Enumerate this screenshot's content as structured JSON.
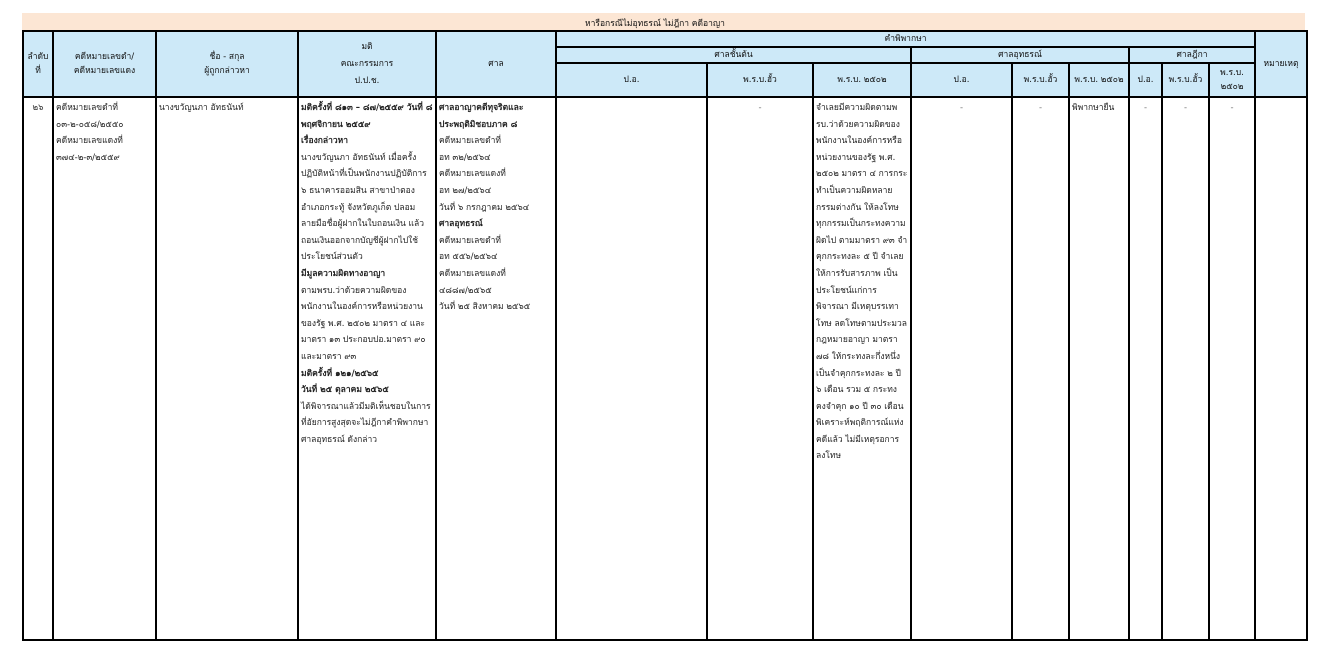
{
  "title": "หารือกรณีไม่อุทธรณ์ ไม่ฎีกา คดีอาญา",
  "headers": {
    "no": [
      "ลำดับ",
      "ที่"
    ],
    "case": [
      "คดีหมายเลขดำ/",
      "คดีหมายเลขแดง"
    ],
    "name": [
      "ชื่อ - สกุล",
      "ผู้ถูกกล่าวหา"
    ],
    "resolution": [
      "มติ",
      "คณะกรรมการ",
      "ป.ป.ช."
    ],
    "court": "ศาล",
    "judgment": "คำพิพากษา",
    "first_court": "ศาลชั้นต้น",
    "appeal_court": "ศาลอุทธรณ์",
    "supreme_court": "ศาลฎีกา",
    "sub": [
      "ป.อ.",
      "พ.ร.บ.ฮั้ว",
      "พ.ร.บ. ๒๕๐๒"
    ],
    "supreme_last": [
      "พ.ร.บ.",
      "๒๕๐๒"
    ],
    "remark": "หมายเหตุ"
  },
  "row": {
    "no": "๒๖",
    "case": [
      "คดีหมายเลขดำที่",
      "๐๓-๒-๐๕๘/๒๕๕๐",
      "คดีหมายเลขแดงที่",
      "๓๗๔-๒-๓/๒๕๕๙"
    ],
    "name": "นางขวัญนภา อัทธนันท์",
    "resolution": [
      {
        "t": "มติครั้งที่ ๘๑๓ – ๘๗/๒๕๕๙ วันที่ ๘ พฤศจิกายน ๒๕๕๙",
        "b": true
      },
      {
        "t": "เรื่องกล่าวหา",
        "b": true
      },
      {
        "t": "นางขวัญนภา อัทธนันท์ เมื่อครั้งปฏิบัติหน้าที่เป็นพนักงานปฏิบัติการ ๖ ธนาคารออมสิน สาขาป่าตอง อำเภอกระทู้ จังหวัดภูเก็ต ปลอมลายมือชื่อผู้ฝากในใบถอนเงิน แล้วถอนเงินออกจากบัญชีผู้ฝากไปใช้ประโยชน์ส่วนตัว",
        "b": false
      },
      {
        "t": "มีมูลความผิดทางอาญา",
        "b": true
      },
      {
        "t": "ตามพรบ.ว่าด้วยความผิดของพนักงานในองค์การหรือหน่วยงานของรัฐ พ.ศ. ๒๕๐๒ มาตรา ๔ และมาตรา ๑๓ ประกอบปอ.มาตรา ๙๐ และมาตรา ๙๓",
        "b": false
      },
      {
        "t": "มติครั้งที่ ๑๒๑/๒๕๖๕",
        "b": true
      },
      {
        "t": "วันที่ ๒๕ ตุลาคม ๒๕๖๕",
        "b": true
      },
      {
        "t": "ได้พิจารณาแล้วมีมติเห็นชอบในการที่อัยการสูงสุดจะไม่ฎีกาคำพิพากษาศาลอุทธรณ์ ดังกล่าว",
        "b": false
      }
    ],
    "court": [
      {
        "t": "ศาลอาญาคดีทุจริตและประพฤติมิชอบภาค ๘",
        "b": true
      },
      {
        "t": "คดีหมายเลขดำที่",
        "b": false
      },
      {
        "t": "อท ๓๒/๒๕๖๔",
        "b": false
      },
      {
        "t": "คดีหมายเลขแดงที่",
        "b": false
      },
      {
        "t": "อท ๒๗/๒๕๖๔",
        "b": false
      },
      {
        "t": "วันที่ ๖ กรกฎาคม ๒๕๖๔",
        "b": false
      },
      {
        "t": "ศาลอุทธรณ์",
        "b": true
      },
      {
        "t": "คดีหมายเลขดำที่",
        "b": false
      },
      {
        "t": "อท ๕๕๖/๒๕๖๔",
        "b": false
      },
      {
        "t": "คดีหมายเลขแดงที่",
        "b": false
      },
      {
        "t": "๔๘๘๗/๒๕๖๕",
        "b": false
      },
      {
        "t": "วันที่ ๒๕ สิงหาคม ๒๕๖๕",
        "b": false
      }
    ],
    "first_po": "",
    "first_hua": "-",
    "first_2502": "จำเลยมีความผิดตามพรบ.ว่าด้วยความผิดของพนักงานในองค์การหรือหน่วยงานของรัฐ พ.ศ. ๒๕๐๒ มาตรา ๔ การกระทำเป็นความผิดหลายกรรมต่างกัน ให้ลงโทษทุกกรรมเป็นกระทงความผิดไป ตามมาตรา ๙๓ จำคุกกระทงละ ๕ ปี จำเลยให้การรับสารภาพ เป็นประโยชน์แก่การพิจารณา มีเหตุบรรเทาโทษ ลดโทษตามประมวลกฎหมายอาญา มาตรา ๗๘ ให้กระทงละกึ่งหนึ่ง เป็นจำคุกกระทงละ ๒ ปี ๖ เดือน รวม ๕ กระทง คงจำคุก ๑๐ ปี ๓๐ เดือน พิเคราะห์พฤติการณ์แห่งคดีแล้ว ไม่มีเหตุรอการลงโทษ",
    "appeal_po": "-",
    "appeal_hua": "-",
    "appeal_2502": "พิพากษายืน",
    "supreme_po": "-",
    "supreme_hua": "-",
    "supreme_2502": "-",
    "remark": ""
  }
}
